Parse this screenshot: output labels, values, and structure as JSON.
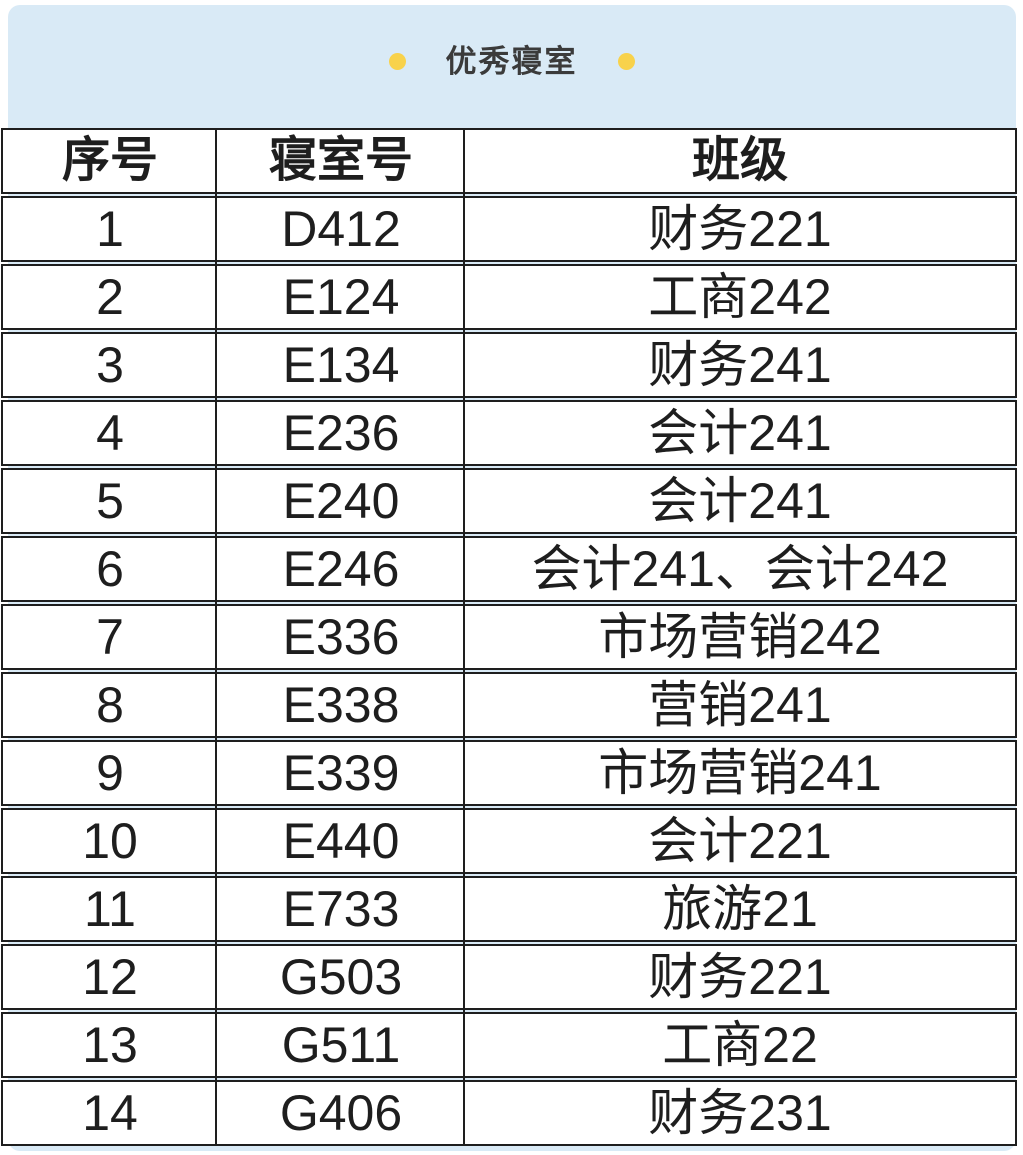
{
  "banner": {
    "title": "优秀寝室",
    "background_color": "#d9eaf6",
    "dot_color": "#f8d24b",
    "dot_icon": "circle-dot"
  },
  "table": {
    "border_color": "#1e1e1e",
    "headers": [
      "序号",
      "寝室号",
      "班级"
    ],
    "rows": [
      [
        "1",
        "D412",
        "财务221"
      ],
      [
        "2",
        "E124",
        "工商242"
      ],
      [
        "3",
        "E134",
        "财务241"
      ],
      [
        "4",
        "E236",
        "会计241"
      ],
      [
        "5",
        "E240",
        "会计241"
      ],
      [
        "6",
        "E246",
        "会计241、会计242"
      ],
      [
        "7",
        "E336",
        "市场营销242"
      ],
      [
        "8",
        "E338",
        "营销241"
      ],
      [
        "9",
        "E339",
        "市场营销241"
      ],
      [
        "10",
        "E440",
        "会计221"
      ],
      [
        "11",
        "E733",
        "旅游21"
      ],
      [
        "12",
        "G503",
        "财务221"
      ],
      [
        "13",
        "G511",
        "工商22"
      ],
      [
        "14",
        "G406",
        "财务231"
      ]
    ]
  }
}
